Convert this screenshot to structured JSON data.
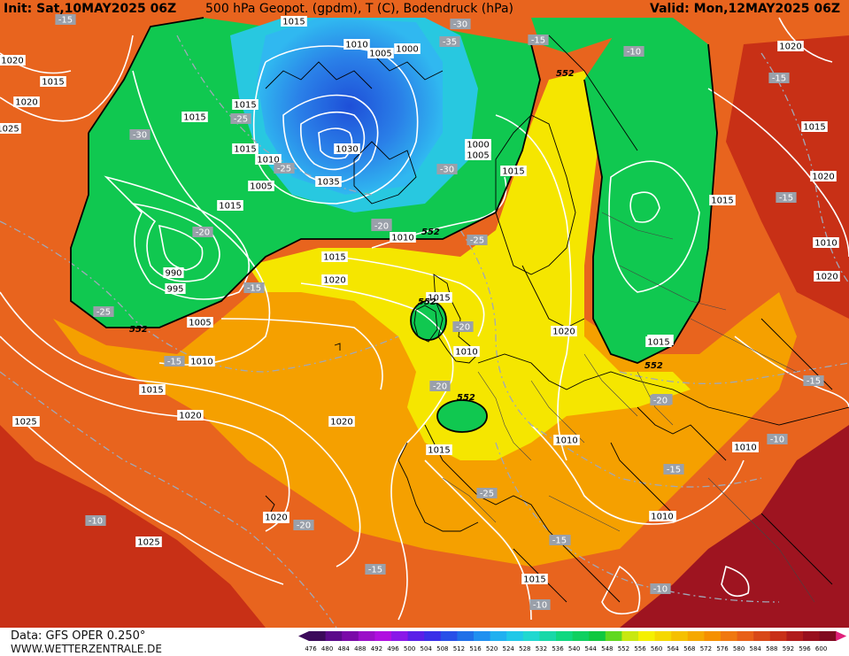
{
  "header": {
    "init": "Init: Sat,10MAY2025 06Z",
    "title": "500 hPa Geopot. (gpdm), T (C), Bodendruck (hPa)",
    "valid": "Valid: Mon,12MAY2025 06Z"
  },
  "footer": {
    "source": "Data: GFS OPER 0.250°",
    "site": "WWW.WETTERZENTRALE.DE"
  },
  "colors": {
    "purple": "#5b0a8a",
    "blue": "#2c6fd9",
    "cyan": "#28c8e0",
    "green": "#10c850",
    "yellow": "#f5f000",
    "orange": "#f5a000",
    "red": "#d43a1a",
    "darkred": "#8e0a1e"
  },
  "legend": {
    "values": [
      "476",
      "480",
      "484",
      "488",
      "492",
      "496",
      "500",
      "504",
      "508",
      "512",
      "516",
      "520",
      "524",
      "528",
      "532",
      "536",
      "540",
      "544",
      "548",
      "552",
      "556",
      "560",
      "564",
      "568",
      "572",
      "576",
      "580",
      "584",
      "588",
      "592",
      "596",
      "600"
    ]
  },
  "pressure_labels": [
    "1015",
    "1010",
    "1000",
    "1020",
    "1005",
    "1015",
    "1020",
    "1015",
    "1010",
    "1005",
    "1025",
    "1030",
    "1035",
    "1000",
    "995",
    "990",
    "1005",
    "1010",
    "1015",
    "1020",
    "1025",
    "1015",
    "1020",
    "1015",
    "1000",
    "1005",
    "1015",
    "1010",
    "1015",
    "1020",
    "1015",
    "1010",
    "1010",
    "1015",
    "1020",
    "1010",
    "1015",
    "1020",
    "1010",
    "1015",
    "1020",
    "1025",
    "1020",
    "1025",
    "1015",
    "1010",
    "1015",
    "1010",
    "1015",
    "1020",
    "1010",
    "1010",
    "1015"
  ],
  "temp_labels": [
    "-15",
    "-30",
    "-35",
    "-30",
    "-25",
    "-30",
    "-25",
    "-30",
    "-20",
    "-20",
    "-25",
    "-15",
    "-15",
    "-25",
    "-20",
    "-20",
    "-25",
    "-20",
    "-15",
    "-20",
    "-10",
    "-20",
    "-15",
    "-20",
    "-15",
    "-10",
    "-10",
    "-15",
    "-10",
    "-15",
    "-15",
    "-10",
    "-15"
  ],
  "geopotential_labels": [
    "552",
    "552",
    "552",
    "552",
    "552",
    "552"
  ]
}
